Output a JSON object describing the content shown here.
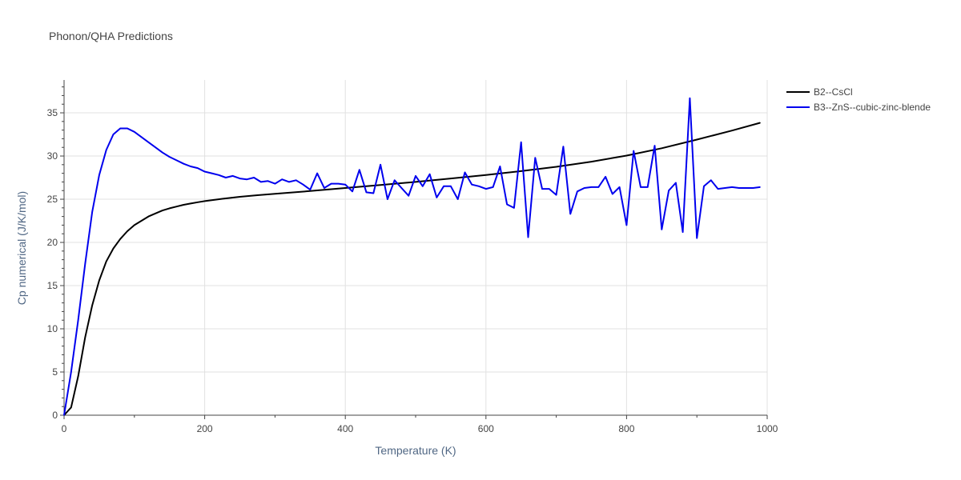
{
  "chart_data": {
    "type": "line",
    "title": "Phonon/QHA Predictions",
    "xlabel": "Temperature (K)",
    "ylabel": "Cp numerical (J/K/mol)",
    "xlim": [
      0,
      1000
    ],
    "ylim": [
      0,
      38.8
    ],
    "x_ticks": [
      0,
      200,
      400,
      600,
      800,
      1000
    ],
    "y_ticks": [
      0,
      5,
      10,
      15,
      20,
      25,
      30,
      35
    ],
    "grid": true,
    "legend_position": "top-right",
    "series": [
      {
        "name": "B2--CsCl",
        "color": "#000000",
        "x": [
          0,
          10,
          20,
          30,
          40,
          50,
          60,
          70,
          80,
          90,
          100,
          110,
          120,
          130,
          140,
          150,
          160,
          170,
          180,
          190,
          200,
          225,
          250,
          275,
          300,
          350,
          400,
          450,
          500,
          550,
          600,
          650,
          700,
          750,
          800,
          850,
          900,
          950,
          990
        ],
        "y": [
          0,
          0.9,
          4.5,
          9.0,
          12.7,
          15.6,
          17.8,
          19.3,
          20.4,
          21.3,
          22.0,
          22.5,
          23.0,
          23.35,
          23.7,
          23.95,
          24.15,
          24.35,
          24.5,
          24.65,
          24.78,
          25.05,
          25.28,
          25.47,
          25.63,
          25.95,
          26.3,
          26.65,
          27.0,
          27.4,
          27.8,
          28.25,
          28.75,
          29.35,
          30.05,
          30.9,
          31.9,
          32.95,
          33.85
        ]
      },
      {
        "name": "B3--ZnS--cubic-zinc-blende",
        "color": "#0000ee",
        "x": [
          0,
          10,
          20,
          30,
          40,
          50,
          60,
          70,
          80,
          90,
          100,
          110,
          120,
          130,
          140,
          150,
          160,
          170,
          180,
          190,
          200,
          210,
          220,
          230,
          240,
          250,
          260,
          270,
          280,
          290,
          300,
          310,
          320,
          330,
          340,
          350,
          360,
          370,
          380,
          390,
          400,
          410,
          420,
          430,
          440,
          450,
          460,
          470,
          480,
          490,
          500,
          510,
          520,
          530,
          540,
          550,
          560,
          570,
          580,
          590,
          600,
          610,
          620,
          630,
          640,
          650,
          660,
          670,
          680,
          690,
          700,
          710,
          720,
          730,
          740,
          750,
          760,
          770,
          780,
          790,
          800,
          810,
          820,
          830,
          840,
          850,
          860,
          870,
          880,
          890,
          900,
          910,
          920,
          930,
          940,
          950,
          960,
          970,
          980,
          990
        ],
        "y": [
          0,
          5.0,
          11.0,
          17.5,
          23.5,
          27.8,
          30.7,
          32.5,
          33.2,
          33.2,
          32.8,
          32.2,
          31.6,
          31.0,
          30.4,
          29.9,
          29.5,
          29.1,
          28.8,
          28.6,
          28.2,
          28.0,
          27.8,
          27.5,
          27.7,
          27.4,
          27.3,
          27.5,
          27.0,
          27.1,
          26.8,
          27.3,
          27.0,
          27.2,
          26.7,
          26.1,
          28.0,
          26.3,
          26.8,
          26.8,
          26.7,
          25.9,
          28.4,
          25.8,
          25.7,
          29.0,
          25.0,
          27.2,
          26.3,
          25.4,
          27.7,
          26.5,
          27.9,
          25.2,
          26.5,
          26.5,
          25.0,
          28.1,
          26.7,
          26.5,
          26.2,
          26.4,
          28.8,
          24.4,
          24.0,
          31.6,
          20.6,
          29.8,
          26.2,
          26.2,
          25.5,
          31.1,
          23.3,
          25.9,
          26.3,
          26.4,
          26.4,
          27.6,
          25.6,
          26.4,
          22.0,
          30.6,
          26.4,
          26.4,
          31.2,
          21.5,
          26.0,
          26.9,
          21.2,
          36.7,
          20.5,
          26.5,
          27.2,
          26.2,
          26.3,
          26.4,
          26.3,
          26.3,
          26.3,
          26.4
        ]
      }
    ]
  }
}
